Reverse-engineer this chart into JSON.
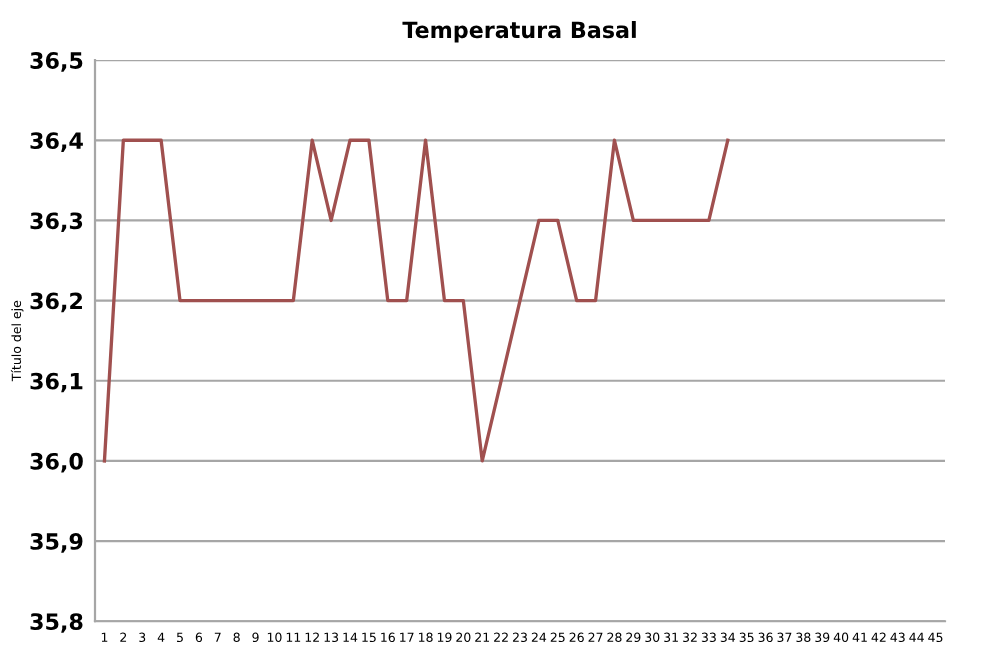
{
  "chart_data": {
    "type": "line",
    "title": "Temperatura Basal",
    "ylabel": "Título del eje",
    "categories": [
      "1",
      "2",
      "3",
      "4",
      "5",
      "6",
      "7",
      "8",
      "9",
      "10",
      "11",
      "12",
      "13",
      "14",
      "15",
      "16",
      "17",
      "18",
      "19",
      "20",
      "21",
      "22",
      "23",
      "24",
      "25",
      "26",
      "27",
      "28",
      "29",
      "30",
      "31",
      "32",
      "33",
      "34",
      "35",
      "36",
      "37",
      "38",
      "39",
      "40",
      "41",
      "42",
      "43",
      "44",
      "45"
    ],
    "series": [
      {
        "color": "#a0504f",
        "values": [
          36.0,
          36.4,
          36.4,
          36.4,
          36.2,
          36.2,
          36.2,
          36.2,
          36.2,
          36.2,
          36.2,
          36.4,
          36.3,
          36.4,
          36.4,
          36.2,
          36.2,
          36.4,
          36.2,
          36.2,
          36.0,
          36.1,
          36.2,
          36.3,
          36.3,
          36.2,
          36.2,
          36.4,
          36.3,
          36.3,
          36.3,
          36.3,
          36.3,
          36.4,
          null,
          null,
          null,
          null,
          null,
          null,
          null,
          null,
          null,
          null,
          null
        ]
      }
    ],
    "ylim": [
      35.8,
      36.5
    ],
    "yticks": [
      {
        "value": 35.8,
        "label": "35,8"
      },
      {
        "value": 35.9,
        "label": "35,9"
      },
      {
        "value": 36.0,
        "label": "36,0"
      },
      {
        "value": 36.1,
        "label": "36,1"
      },
      {
        "value": 36.2,
        "label": "36,2"
      },
      {
        "value": 36.3,
        "label": "36,3"
      },
      {
        "value": 36.4,
        "label": "36,4"
      },
      {
        "value": 36.5,
        "label": "36,5"
      }
    ],
    "grid": "y",
    "marker": "none",
    "line_style": "solid"
  }
}
